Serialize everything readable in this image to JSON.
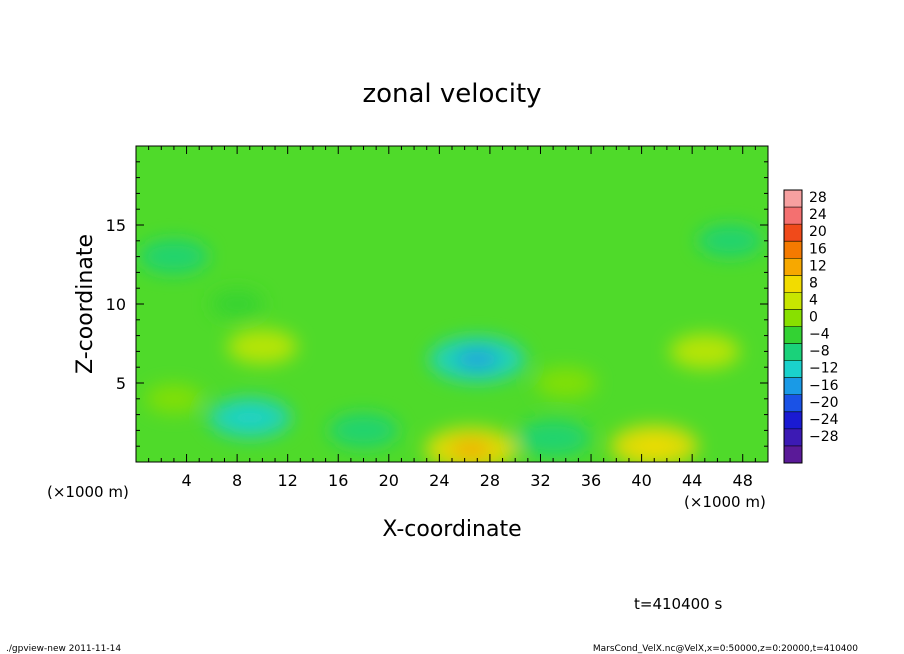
{
  "chart_data": {
    "type": "heatmap",
    "title": "zonal velocity",
    "xlabel": "X-coordinate",
    "ylabel": "Z-coordinate",
    "x_unit_label": "(×1000 m)",
    "x_unit_label_right": "(×1000 m)",
    "xlim": [
      0,
      50
    ],
    "ylim": [
      0,
      20
    ],
    "x_ticks": [
      "4",
      "8",
      "12",
      "16",
      "20",
      "24",
      "28",
      "32",
      "36",
      "40",
      "44",
      "48"
    ],
    "y_ticks": [
      "5",
      "10",
      "15"
    ],
    "time_label": "t=410400 s",
    "colorbar": {
      "labels": [
        "28",
        "24",
        "20",
        "16",
        "12",
        "8",
        "4",
        "0",
        "−4",
        "−8",
        "−12",
        "−16",
        "−20",
        "−24",
        "−28"
      ],
      "colors": [
        "#f7a0a0",
        "#f47070",
        "#f04a1a",
        "#f57a00",
        "#f7a800",
        "#f2dc00",
        "#c8e600",
        "#88e000",
        "#33d233",
        "#1ad27a",
        "#1ad2cc",
        "#1a9ae6",
        "#1a52e6",
        "#1a1ad2",
        "#3c1ab4",
        "#5a1a98"
      ]
    },
    "field_features": [
      {
        "x": 8,
        "z": 10,
        "velocity": -1
      },
      {
        "x": 3,
        "z": 4,
        "velocity": 2
      },
      {
        "x": 9,
        "z": 2.8,
        "velocity": -8
      },
      {
        "x": 10,
        "z": 7.3,
        "velocity": 5
      },
      {
        "x": 27,
        "z": 6.5,
        "velocity": -11
      },
      {
        "x": 26.5,
        "z": 0.8,
        "velocity": 10
      },
      {
        "x": 34,
        "z": 5,
        "velocity": 3
      },
      {
        "x": 41,
        "z": 1,
        "velocity": 9
      },
      {
        "x": 45,
        "z": 7,
        "velocity": 5
      },
      {
        "x": 3,
        "z": 13,
        "velocity": -5
      },
      {
        "x": 47,
        "z": 14,
        "velocity": -4
      },
      {
        "x": 33,
        "z": 1.5,
        "velocity": -6
      },
      {
        "x": 18,
        "z": 2,
        "velocity": -5
      }
    ]
  },
  "footer": {
    "left": "./gpview-new  2011-11-14",
    "right": "MarsCond_VelX.nc@VelX,x=0:50000,z=0:20000,t=410400"
  }
}
